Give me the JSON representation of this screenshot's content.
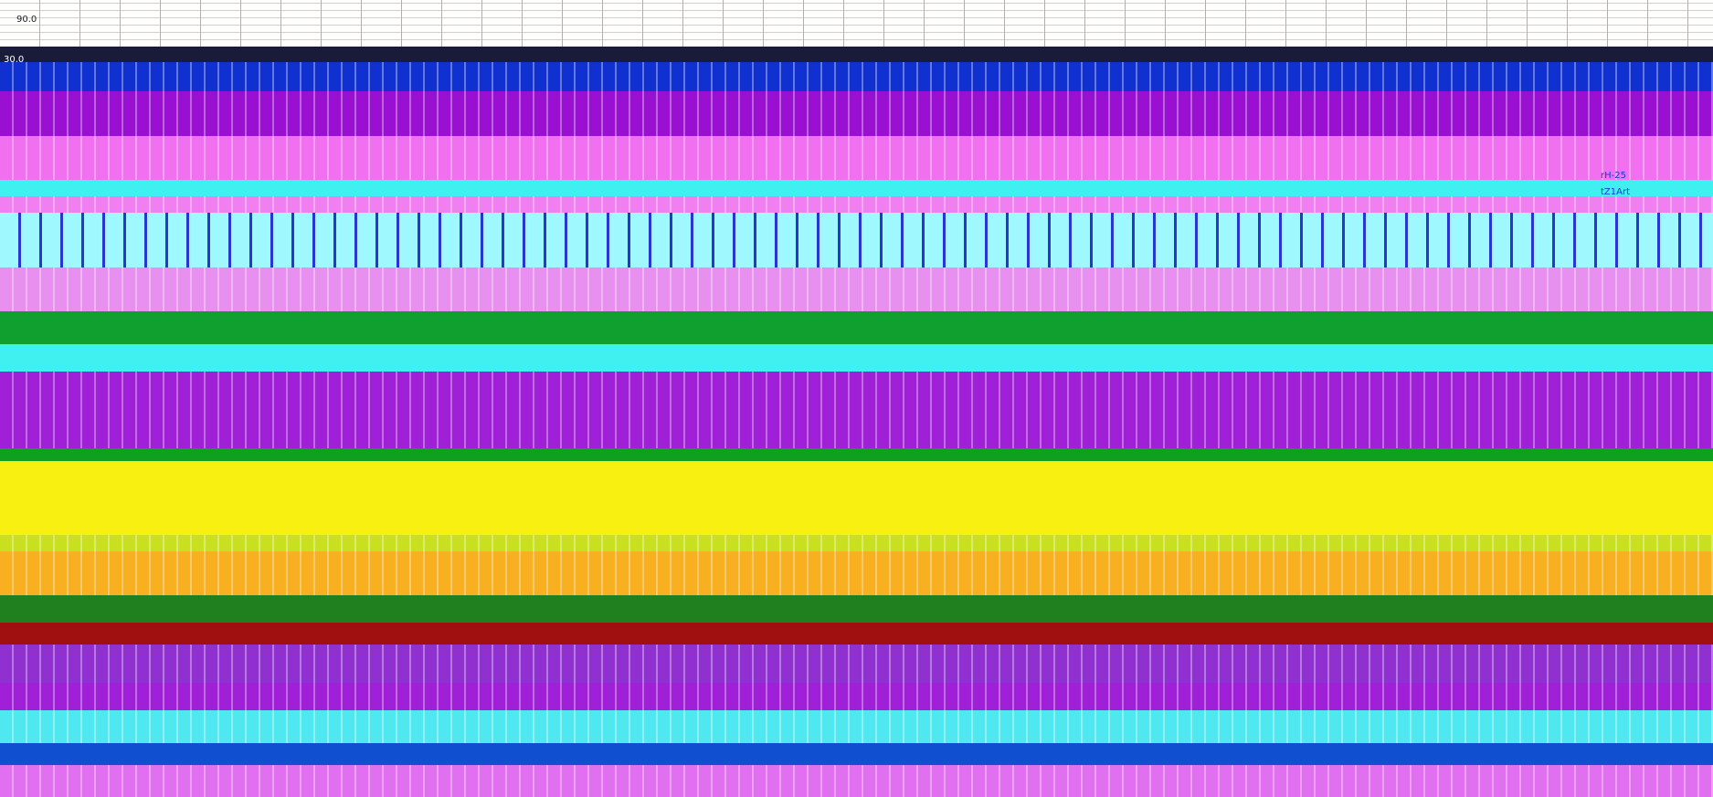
{
  "labels": {
    "top_value": "90.0",
    "second_value": "30.0",
    "legend_items": [
      "rH-25",
      "tZ1Art"
    ]
  }
}
